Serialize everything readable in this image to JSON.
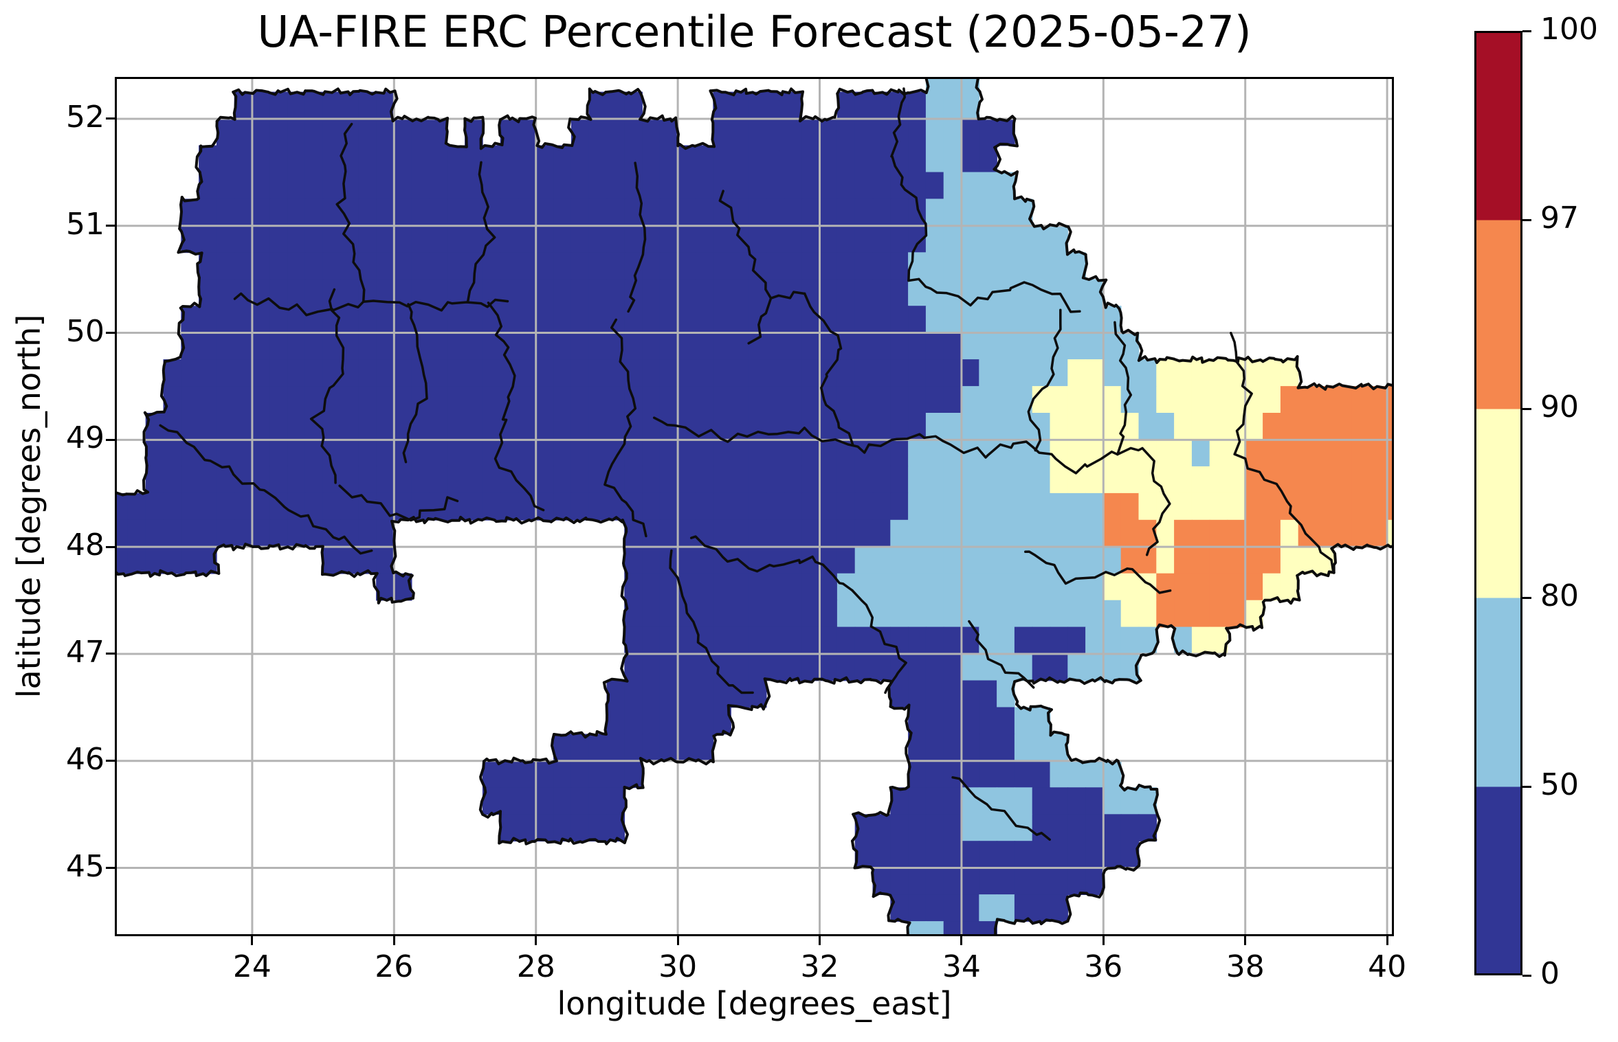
{
  "title": "UA-FIRE ERC Percentile Forecast (2025-05-27)",
  "axes": {
    "xlabel": "longitude [degrees_east]",
    "ylabel": "latitude [degrees_north]",
    "xticks": [
      24,
      26,
      28,
      30,
      32,
      34,
      36,
      38,
      40
    ],
    "yticks": [
      52,
      51,
      50,
      49,
      48,
      47,
      46,
      45
    ],
    "xlim": [
      22.09,
      40.06
    ],
    "ylim": [
      44.38,
      52.37
    ],
    "grid_color": "#b4b4b4",
    "spine_color": "#000000",
    "grid_on": true
  },
  "colorbar": {
    "boundaries": [
      0,
      50,
      80,
      90,
      97,
      100
    ],
    "tick_labels": [
      "0",
      "50",
      "80",
      "90",
      "97",
      "100"
    ],
    "segment_colors": [
      "#313695",
      "#8fc5e0",
      "#ffffbf",
      "#f5874e",
      "#a50f26"
    ],
    "outline_color": "#000000"
  },
  "chart_data": {
    "type": "heatmap",
    "title": "UA-FIRE ERC Percentile Forecast (2025-05-27)",
    "xlabel": "longitude [degrees_east]",
    "ylabel": "latitude [degrees_north]",
    "units": "ERC percentile",
    "cell_size_deg": 0.25,
    "lon_start": 22.0,
    "lat_top": 52.5,
    "n_cols": 73,
    "n_rows": 33,
    "class_values": {
      "1": "0-50",
      "2": "50-80",
      "3": "80-90",
      "4": "90-97",
      "5": "97-100"
    },
    "palette": {
      "1": "#313695",
      "2": "#8fc5e0",
      "3": "#ffffbf",
      "4": "#f5874e",
      "5": "#a50f26"
    },
    "no_data_color": "#ffffff",
    "boundary_color": "#0d0d0d",
    "grid_rle": [
      [
        [
          46,
          "."
        ],
        [
          3,
          "2"
        ],
        [
          24,
          "."
        ]
      ],
      [
        [
          7,
          "."
        ],
        [
          9,
          "1"
        ],
        [
          11,
          "."
        ],
        [
          3,
          "1"
        ],
        [
          4,
          "."
        ],
        [
          5,
          "1"
        ],
        [
          2,
          "."
        ],
        [
          5,
          "1"
        ],
        [
          3,
          "2"
        ],
        [
          24,
          "."
        ]
      ],
      [
        [
          6,
          "."
        ],
        [
          13,
          "1"
        ],
        [
          1,
          "."
        ],
        [
          1,
          "1"
        ],
        [
          1,
          "."
        ],
        [
          2,
          "1"
        ],
        [
          2,
          "."
        ],
        [
          6,
          "1"
        ],
        [
          2,
          "."
        ],
        [
          12,
          "1"
        ],
        [
          2,
          "2"
        ],
        [
          3,
          "1"
        ],
        [
          22,
          "."
        ]
      ],
      [
        [
          5,
          "."
        ],
        [
          41,
          "1"
        ],
        [
          2,
          "2"
        ],
        [
          2,
          "1"
        ],
        [
          23,
          "."
        ]
      ],
      [
        [
          5,
          "."
        ],
        [
          42,
          "1"
        ],
        [
          4,
          "2"
        ],
        [
          22,
          "."
        ]
      ],
      [
        [
          4,
          "."
        ],
        [
          42,
          "1"
        ],
        [
          6,
          "2"
        ],
        [
          21,
          "."
        ]
      ],
      [
        [
          4,
          "."
        ],
        [
          42,
          "1"
        ],
        [
          8,
          "2"
        ],
        [
          19,
          "."
        ]
      ],
      [
        [
          5,
          "."
        ],
        [
          40,
          "1"
        ],
        [
          10,
          "2"
        ],
        [
          18,
          "."
        ]
      ],
      [
        [
          5,
          "."
        ],
        [
          40,
          "1"
        ],
        [
          11,
          "2"
        ],
        [
          17,
          "."
        ]
      ],
      [
        [
          4,
          "."
        ],
        [
          42,
          "1"
        ],
        [
          11,
          "2"
        ],
        [
          16,
          "."
        ]
      ],
      [
        [
          4,
          "."
        ],
        [
          44,
          "1"
        ],
        [
          10,
          "2"
        ],
        [
          15,
          "."
        ]
      ],
      [
        [
          3,
          "."
        ],
        [
          46,
          "1"
        ],
        [
          5,
          "2"
        ],
        [
          2,
          "3"
        ],
        [
          3,
          "2"
        ],
        [
          8,
          "3"
        ],
        [
          6,
          "."
        ]
      ],
      [
        [
          3,
          "."
        ],
        [
          45,
          "1"
        ],
        [
          4,
          "2"
        ],
        [
          5,
          "3"
        ],
        [
          2,
          "2"
        ],
        [
          7,
          "3"
        ],
        [
          7,
          "4"
        ]
      ],
      [
        [
          2,
          "."
        ],
        [
          44,
          "1"
        ],
        [
          7,
          "2"
        ],
        [
          5,
          "3"
        ],
        [
          2,
          "2"
        ],
        [
          5,
          "3"
        ],
        [
          8,
          "4"
        ]
      ],
      [
        [
          2,
          "."
        ],
        [
          43,
          "1"
        ],
        [
          8,
          "2"
        ],
        [
          8,
          "3"
        ],
        [
          1,
          "2"
        ],
        [
          2,
          "3"
        ],
        [
          9,
          "4"
        ]
      ],
      [
        [
          2,
          "."
        ],
        [
          43,
          "1"
        ],
        [
          8,
          "2"
        ],
        [
          11,
          "3"
        ],
        [
          9,
          "4"
        ]
      ],
      [
        [
          45,
          "1"
        ],
        [
          11,
          "2"
        ],
        [
          2,
          "4"
        ],
        [
          6,
          "3"
        ],
        [
          9,
          "4"
        ]
      ],
      [
        [
          16,
          "1"
        ],
        [
          13,
          "."
        ],
        [
          15,
          "1"
        ],
        [
          12,
          "2"
        ],
        [
          3,
          "4"
        ],
        [
          1,
          "3"
        ],
        [
          6,
          "4"
        ],
        [
          1,
          "3"
        ],
        [
          5,
          "4"
        ],
        [
          1,
          "3"
        ]
      ],
      [
        [
          6,
          "1"
        ],
        [
          6,
          "."
        ],
        [
          4,
          "1"
        ],
        [
          13,
          "."
        ],
        [
          13,
          "1"
        ],
        [
          15,
          "2"
        ],
        [
          2,
          "4"
        ],
        [
          1,
          "3"
        ],
        [
          6,
          "4"
        ],
        [
          3,
          "3"
        ],
        [
          4,
          "."
        ]
      ],
      [
        [
          15,
          "."
        ],
        [
          2,
          "1"
        ],
        [
          12,
          "."
        ],
        [
          12,
          "1"
        ],
        [
          15,
          "2"
        ],
        [
          3,
          "3"
        ],
        [
          6,
          "4"
        ],
        [
          2,
          "3"
        ],
        [
          6,
          "."
        ]
      ],
      [
        [
          29,
          "."
        ],
        [
          12,
          "1"
        ],
        [
          16,
          "2"
        ],
        [
          2,
          "3"
        ],
        [
          5,
          "4"
        ],
        [
          1,
          "3"
        ],
        [
          8,
          "."
        ]
      ],
      [
        [
          29,
          "."
        ],
        [
          20,
          "1"
        ],
        [
          2,
          "2"
        ],
        [
          4,
          "1"
        ],
        [
          4,
          "2"
        ],
        [
          1,
          "."
        ],
        [
          1,
          "2"
        ],
        [
          2,
          "3"
        ],
        [
          10,
          "."
        ]
      ],
      [
        [
          29,
          "."
        ],
        [
          19,
          "1"
        ],
        [
          4,
          "2"
        ],
        [
          2,
          "1"
        ],
        [
          4,
          "2"
        ],
        [
          15,
          "."
        ]
      ],
      [
        [
          28,
          "."
        ],
        [
          9,
          "1"
        ],
        [
          7,
          "."
        ],
        [
          6,
          "1"
        ],
        [
          1,
          "2"
        ],
        [
          22,
          "."
        ]
      ],
      [
        [
          28,
          "."
        ],
        [
          7,
          "1"
        ],
        [
          10,
          "."
        ],
        [
          6,
          "1"
        ],
        [
          2,
          "2"
        ],
        [
          20,
          "."
        ]
      ],
      [
        [
          25,
          "."
        ],
        [
          9,
          "1"
        ],
        [
          11,
          "."
        ],
        [
          6,
          "1"
        ],
        [
          3,
          "2"
        ],
        [
          19,
          "."
        ]
      ],
      [
        [
          21,
          "."
        ],
        [
          9,
          "1"
        ],
        [
          15,
          "."
        ],
        [
          8,
          "1"
        ],
        [
          4,
          "2"
        ],
        [
          16,
          "."
        ]
      ],
      [
        [
          21,
          "."
        ],
        [
          8,
          "1"
        ],
        [
          15,
          "."
        ],
        [
          4,
          "1"
        ],
        [
          4,
          "2"
        ],
        [
          4,
          "1"
        ],
        [
          3,
          "2"
        ],
        [
          14,
          "."
        ]
      ],
      [
        [
          22,
          "."
        ],
        [
          7,
          "1"
        ],
        [
          13,
          "."
        ],
        [
          6,
          "1"
        ],
        [
          4,
          "2"
        ],
        [
          7,
          "1"
        ],
        [
          14,
          "."
        ]
      ],
      [
        [
          42,
          "."
        ],
        [
          16,
          "1"
        ],
        [
          15,
          "."
        ]
      ],
      [
        [
          43,
          "."
        ],
        [
          13,
          "1"
        ],
        [
          17,
          "."
        ]
      ],
      [
        [
          44,
          "."
        ],
        [
          5,
          "1"
        ],
        [
          2,
          "2"
        ],
        [
          3,
          "1"
        ],
        [
          19,
          "."
        ]
      ],
      [
        [
          45,
          "."
        ],
        [
          2,
          "2"
        ],
        [
          3,
          "1"
        ],
        [
          23,
          "."
        ]
      ]
    ],
    "region_boundaries": [
      [
        [
          22.7,
          49.15
        ],
        [
          23.4,
          48.8
        ],
        [
          24.2,
          48.5
        ],
        [
          25.0,
          48.15
        ],
        [
          25.7,
          47.95
        ]
      ],
      [
        [
          23.7,
          50.35
        ],
        [
          24.8,
          50.2
        ],
        [
          25.6,
          50.3
        ],
        [
          26.6,
          50.25
        ],
        [
          27.6,
          50.3
        ]
      ],
      [
        [
          25.35,
          51.95
        ],
        [
          25.25,
          51.2
        ],
        [
          25.6,
          50.3
        ]
      ],
      [
        [
          27.2,
          51.6
        ],
        [
          27.35,
          50.9
        ],
        [
          27.0,
          50.3
        ]
      ],
      [
        [
          29.4,
          51.55
        ],
        [
          29.55,
          50.8
        ],
        [
          29.3,
          50.2
        ]
      ],
      [
        [
          30.6,
          51.35
        ],
        [
          30.9,
          50.9
        ],
        [
          31.3,
          50.3
        ],
        [
          31.05,
          49.9
        ]
      ],
      [
        [
          33.25,
          52.3
        ],
        [
          33.0,
          51.6
        ],
        [
          33.5,
          51.0
        ],
        [
          33.2,
          50.5
        ]
      ],
      [
        [
          33.2,
          50.5
        ],
        [
          34.1,
          50.3
        ],
        [
          35.0,
          50.45
        ],
        [
          35.65,
          50.2
        ]
      ],
      [
        [
          25.1,
          50.4
        ],
        [
          25.3,
          49.7
        ],
        [
          24.9,
          49.2
        ],
        [
          25.2,
          48.6
        ]
      ],
      [
        [
          26.2,
          50.3
        ],
        [
          26.45,
          49.5
        ],
        [
          26.1,
          48.8
        ]
      ],
      [
        [
          27.4,
          50.28
        ],
        [
          27.7,
          49.5
        ],
        [
          27.4,
          48.8
        ],
        [
          28.1,
          48.35
        ]
      ],
      [
        [
          29.1,
          50.1
        ],
        [
          29.4,
          49.3
        ],
        [
          29.0,
          48.6
        ],
        [
          29.6,
          48.1
        ]
      ],
      [
        [
          29.6,
          49.2
        ],
        [
          30.7,
          49.0
        ],
        [
          31.7,
          49.1
        ],
        [
          32.6,
          48.9
        ],
        [
          33.5,
          49.05
        ]
      ],
      [
        [
          30.2,
          48.1
        ],
        [
          31.0,
          47.8
        ],
        [
          31.9,
          47.9
        ],
        [
          32.5,
          47.6
        ]
      ],
      [
        [
          29.85,
          47.95
        ],
        [
          30.2,
          47.3
        ],
        [
          30.6,
          46.8
        ],
        [
          31.05,
          46.6
        ]
      ],
      [
        [
          33.5,
          49.05
        ],
        [
          34.3,
          48.85
        ],
        [
          34.9,
          49.0
        ],
        [
          35.6,
          48.7
        ],
        [
          36.2,
          48.9
        ],
        [
          36.6,
          48.9
        ]
      ],
      [
        [
          34.9,
          48.0
        ],
        [
          35.5,
          47.7
        ],
        [
          36.3,
          47.8
        ],
        [
          36.9,
          47.55
        ]
      ],
      [
        [
          36.6,
          48.9
        ],
        [
          36.9,
          48.4
        ],
        [
          36.6,
          47.9
        ]
      ],
      [
        [
          37.8,
          50.0
        ],
        [
          38.05,
          49.4
        ],
        [
          37.9,
          48.9
        ]
      ],
      [
        [
          37.9,
          48.9
        ],
        [
          38.5,
          48.5
        ],
        [
          38.9,
          48.05
        ],
        [
          39.3,
          47.8
        ]
      ],
      [
        [
          34.1,
          47.3
        ],
        [
          34.5,
          46.9
        ],
        [
          35.0,
          46.7
        ]
      ],
      [
        [
          32.5,
          47.6
        ],
        [
          32.85,
          47.2
        ],
        [
          33.2,
          46.9
        ],
        [
          32.9,
          46.6
        ]
      ],
      [
        [
          35.4,
          50.2
        ],
        [
          35.3,
          49.6
        ],
        [
          34.95,
          49.3
        ],
        [
          35.1,
          48.9
        ]
      ],
      [
        [
          31.8,
          50.35
        ],
        [
          32.3,
          49.9
        ],
        [
          32.0,
          49.4
        ],
        [
          32.5,
          49.0
        ]
      ],
      [
        [
          25.3,
          48.55
        ],
        [
          26.2,
          48.25
        ],
        [
          26.9,
          48.45
        ]
      ],
      [
        [
          33.9,
          45.85
        ],
        [
          34.6,
          45.5
        ],
        [
          35.3,
          45.25
        ]
      ],
      [
        [
          31.3,
          50.3
        ],
        [
          31.8,
          50.35
        ]
      ],
      [
        [
          36.2,
          48.9
        ],
        [
          36.35,
          49.5
        ],
        [
          36.2,
          50.1
        ]
      ]
    ]
  }
}
